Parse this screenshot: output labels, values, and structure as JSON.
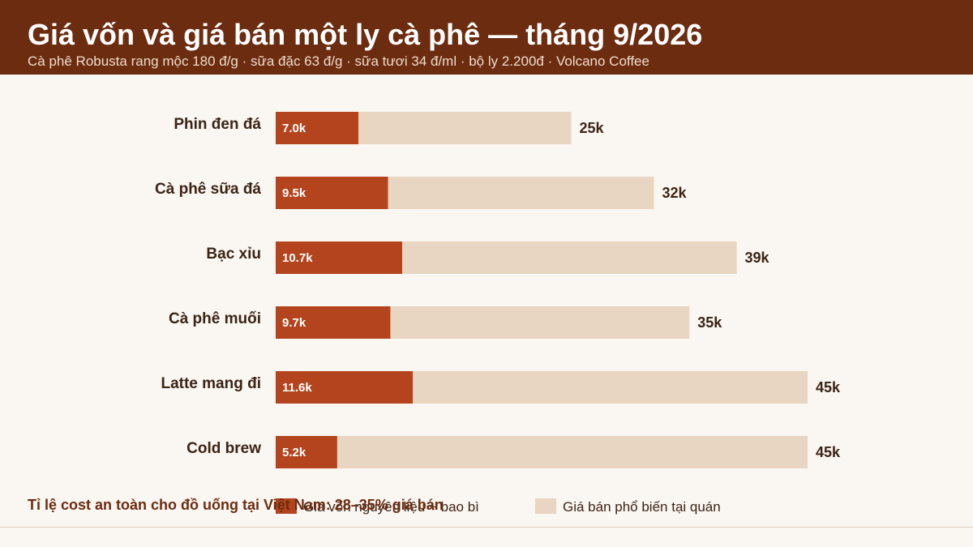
{
  "header": {
    "title": "Giá vốn và giá bán một ly cà phê — tháng 9/2026",
    "subtitle": "Cà phê Robusta rang mộc 180 đ/g · sữa đặc 63 đ/g · sữa tươi 34 đ/ml · bộ ly 2.200đ · Volcano Coffee"
  },
  "note": "Tỉ lệ cost an toàn cho đồ uống tại Việt Nam: 28–35% giá bán",
  "colors": {
    "cost": "#b3441e",
    "price": "#e8d5c2",
    "header": "#6b2c10",
    "text": "#3b2416"
  },
  "chart_data": {
    "type": "bar",
    "orientation": "horizontal",
    "categories": [
      "Phin đen đá",
      "Cà phê sữa đá",
      "Bạc xỉu",
      "Cà phê muối",
      "Latte mang đi",
      "Cold brew"
    ],
    "series": [
      {
        "name": "Giá vốn nguyên liệu + bao bì",
        "values": [
          7.0,
          9.5,
          10.7,
          9.7,
          11.6,
          5.2
        ],
        "labels": [
          "7.0k",
          "9.5k",
          "10.7k",
          "9.7k",
          "11.6k",
          "5.2k"
        ]
      },
      {
        "name": "Giá bán phổ biến tại quán",
        "values": [
          25,
          32,
          39,
          35,
          45,
          45
        ],
        "labels": [
          "25k",
          "32k",
          "39k",
          "35k",
          "45k",
          "45k"
        ]
      }
    ],
    "unit": "k",
    "xlim": [
      0,
      45
    ],
    "grid": false,
    "legend": "bottom"
  }
}
